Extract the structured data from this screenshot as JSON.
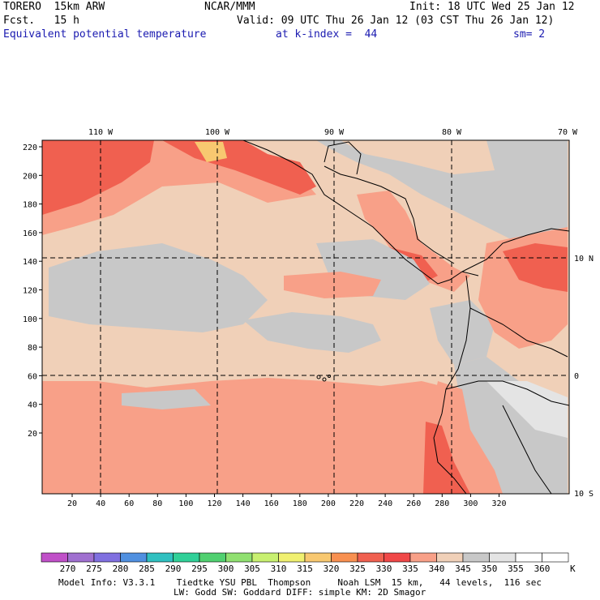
{
  "header": {
    "model": "TORERO  15km ARW",
    "org": "NCAR/MMM",
    "init": "Init: 18 UTC Wed 25 Jan 12",
    "fcst": "Fcst.   15 h",
    "valid": "Valid: 09 UTC Thu 26 Jan 12 (03 CST Thu 26 Jan 12)",
    "field": "Equivalent potential temperature",
    "level": "at k-index =  44",
    "smooth": "sm= 2"
  },
  "map": {
    "top_lon_labels": [
      "110 W",
      "100 W",
      "90 W",
      "80 W",
      "70 W"
    ],
    "right_lat_labels": [
      "10 N",
      "0",
      "10 S"
    ],
    "y_ticks": [
      "220",
      "200",
      "180",
      "160",
      "140",
      "120",
      "100",
      "80",
      "60",
      "40",
      "20"
    ],
    "x_ticks": [
      "20",
      "40",
      "60",
      "80",
      "100",
      "120",
      "140",
      "160",
      "180",
      "200",
      "220",
      "240",
      "260",
      "280",
      "300",
      "320"
    ]
  },
  "colorbar": {
    "levels": [
      "270",
      "275",
      "280",
      "285",
      "290",
      "295",
      "300",
      "305",
      "310",
      "315",
      "320",
      "325",
      "330",
      "335",
      "340",
      "345",
      "350",
      "355",
      "360"
    ],
    "unit": "K",
    "colors": [
      "#c050c8",
      "#a070d0",
      "#8070e0",
      "#5090e0",
      "#30c0c0",
      "#30d098",
      "#50d070",
      "#90e070",
      "#c8f070",
      "#f0f070",
      "#f8c870",
      "#f89050",
      "#f06050",
      "#f04848",
      "#f8a088",
      "#f0d0b8",
      "#c8c8c8",
      "#e4e4e4",
      "#ffffff",
      "#ffffff"
    ]
  },
  "footer": {
    "line1": "Model Info: V3.3.1    Tiedtke YSU PBL  Thompson     Noah LSM  15 km,   44 levels,  116 sec",
    "line2": "LW: Godd SW: Goddard DIFF: simple KM: 2D Smagor"
  }
}
